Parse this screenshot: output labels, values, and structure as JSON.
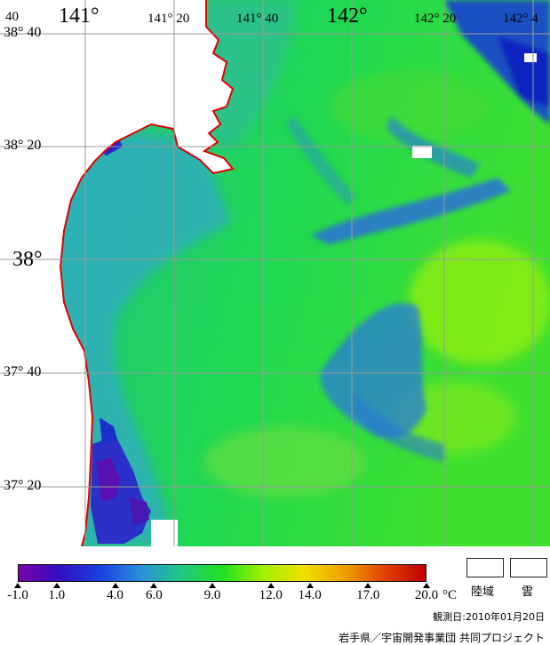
{
  "map": {
    "lon_labels": [
      "141°",
      "141° 20",
      "141° 40",
      "142°",
      "142° 20",
      "142° 4"
    ],
    "lat_labels": [
      "38° 40",
      "38° 20",
      "38°",
      "37° 40",
      "37° 20"
    ],
    "corner_label": "40",
    "colors": {
      "land": "#ffffff",
      "coastline": "#e00000",
      "grid": "#9a9a9a"
    }
  },
  "legend": {
    "ticks": [
      "-1.0",
      "1.0",
      "4.0",
      "6.0",
      "9.0",
      "12.0",
      "14.0",
      "17.0",
      "20.0"
    ],
    "unit": "°C",
    "land_label": "陸域",
    "cloud_label": "雲",
    "colors": [
      "#7a00a8",
      "#3010c0",
      "#1a40e0",
      "#2a90d8",
      "#20c880",
      "#20e020",
      "#a0f000",
      "#f0e000",
      "#f0a000",
      "#e04000",
      "#c00000"
    ]
  },
  "observation_date": "観測日:2010年01月20日",
  "credit": "岩手県／宇宙開発事業団 共同プロジェクト"
}
